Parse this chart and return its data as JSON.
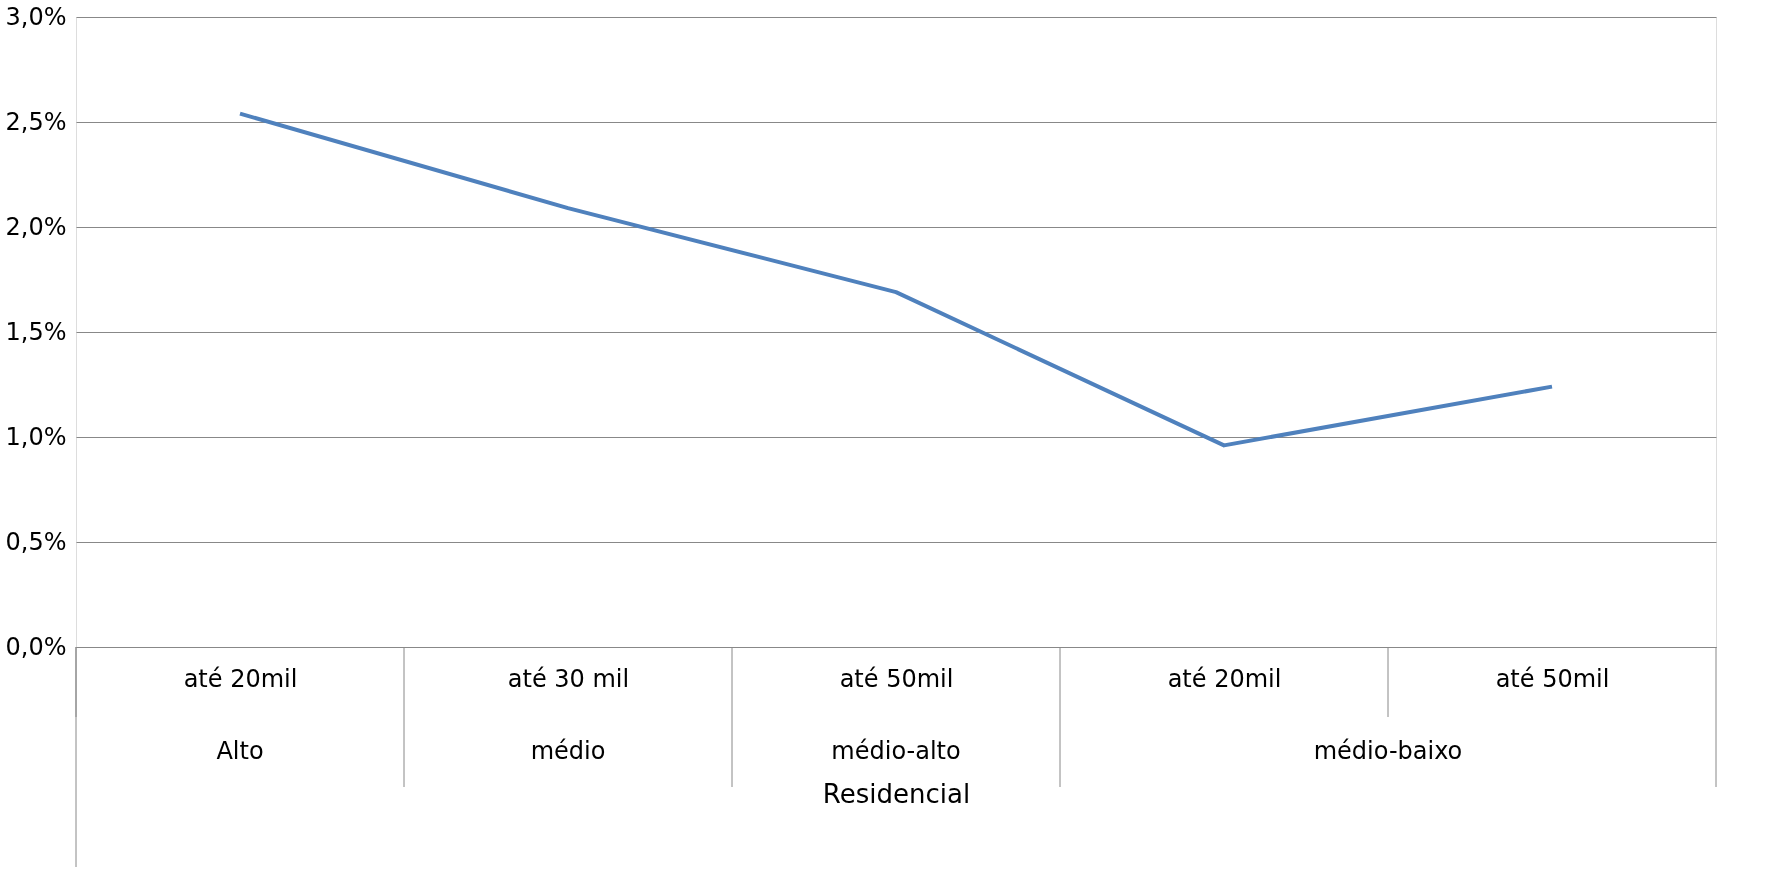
{
  "chart_data": {
    "type": "line",
    "xlabel": "Residencial",
    "categories": [
      "até 20mil",
      "até 30 mil",
      "até 50mil",
      "até 20mil",
      "até 50mil"
    ],
    "series": [
      {
        "color": "#4f81bd",
        "values": [
          2.54,
          2.09,
          1.69,
          0.96,
          1.24
        ]
      }
    ],
    "ylim": [
      0,
      3
    ],
    "yticks": [
      {
        "value": 0,
        "label": "0,0%"
      },
      {
        "value": 0.5,
        "label": "0,5%"
      },
      {
        "value": 1,
        "label": "1,0%"
      },
      {
        "value": 1.5,
        "label": "1,5%"
      },
      {
        "value": 2,
        "label": "2,0%"
      },
      {
        "value": 2.5,
        "label": "2,5%"
      },
      {
        "value": 3,
        "label": "3,0%"
      }
    ],
    "grid": "y",
    "marker": "none",
    "legend": false,
    "annotations": [
      "Alto",
      "médio",
      "médio-alto",
      "médio-baixo"
    ]
  }
}
